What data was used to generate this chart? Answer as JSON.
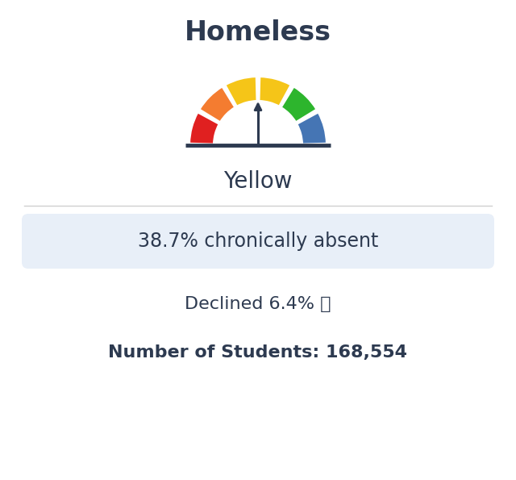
{
  "title": "Homeless",
  "gauge_label": "Yellow",
  "segment_colors": [
    "#e02020",
    "#f47c30",
    "#f5c518",
    "#f5c518",
    "#2db52d",
    "#4575b4"
  ],
  "stat_box_text": "38.7% chronically absent",
  "stat_box_bg": "#e8eff8",
  "declined_text": "Declined 6.4% ⓩ",
  "students_text": "Number of Students: 168,554",
  "text_color": "#2d3a50",
  "bg_color": "#ffffff",
  "divider_color": "#d0d0d0",
  "title_fontsize": 24,
  "gauge_label_fontsize": 20,
  "stat_fontsize": 17,
  "info_fontsize": 16
}
